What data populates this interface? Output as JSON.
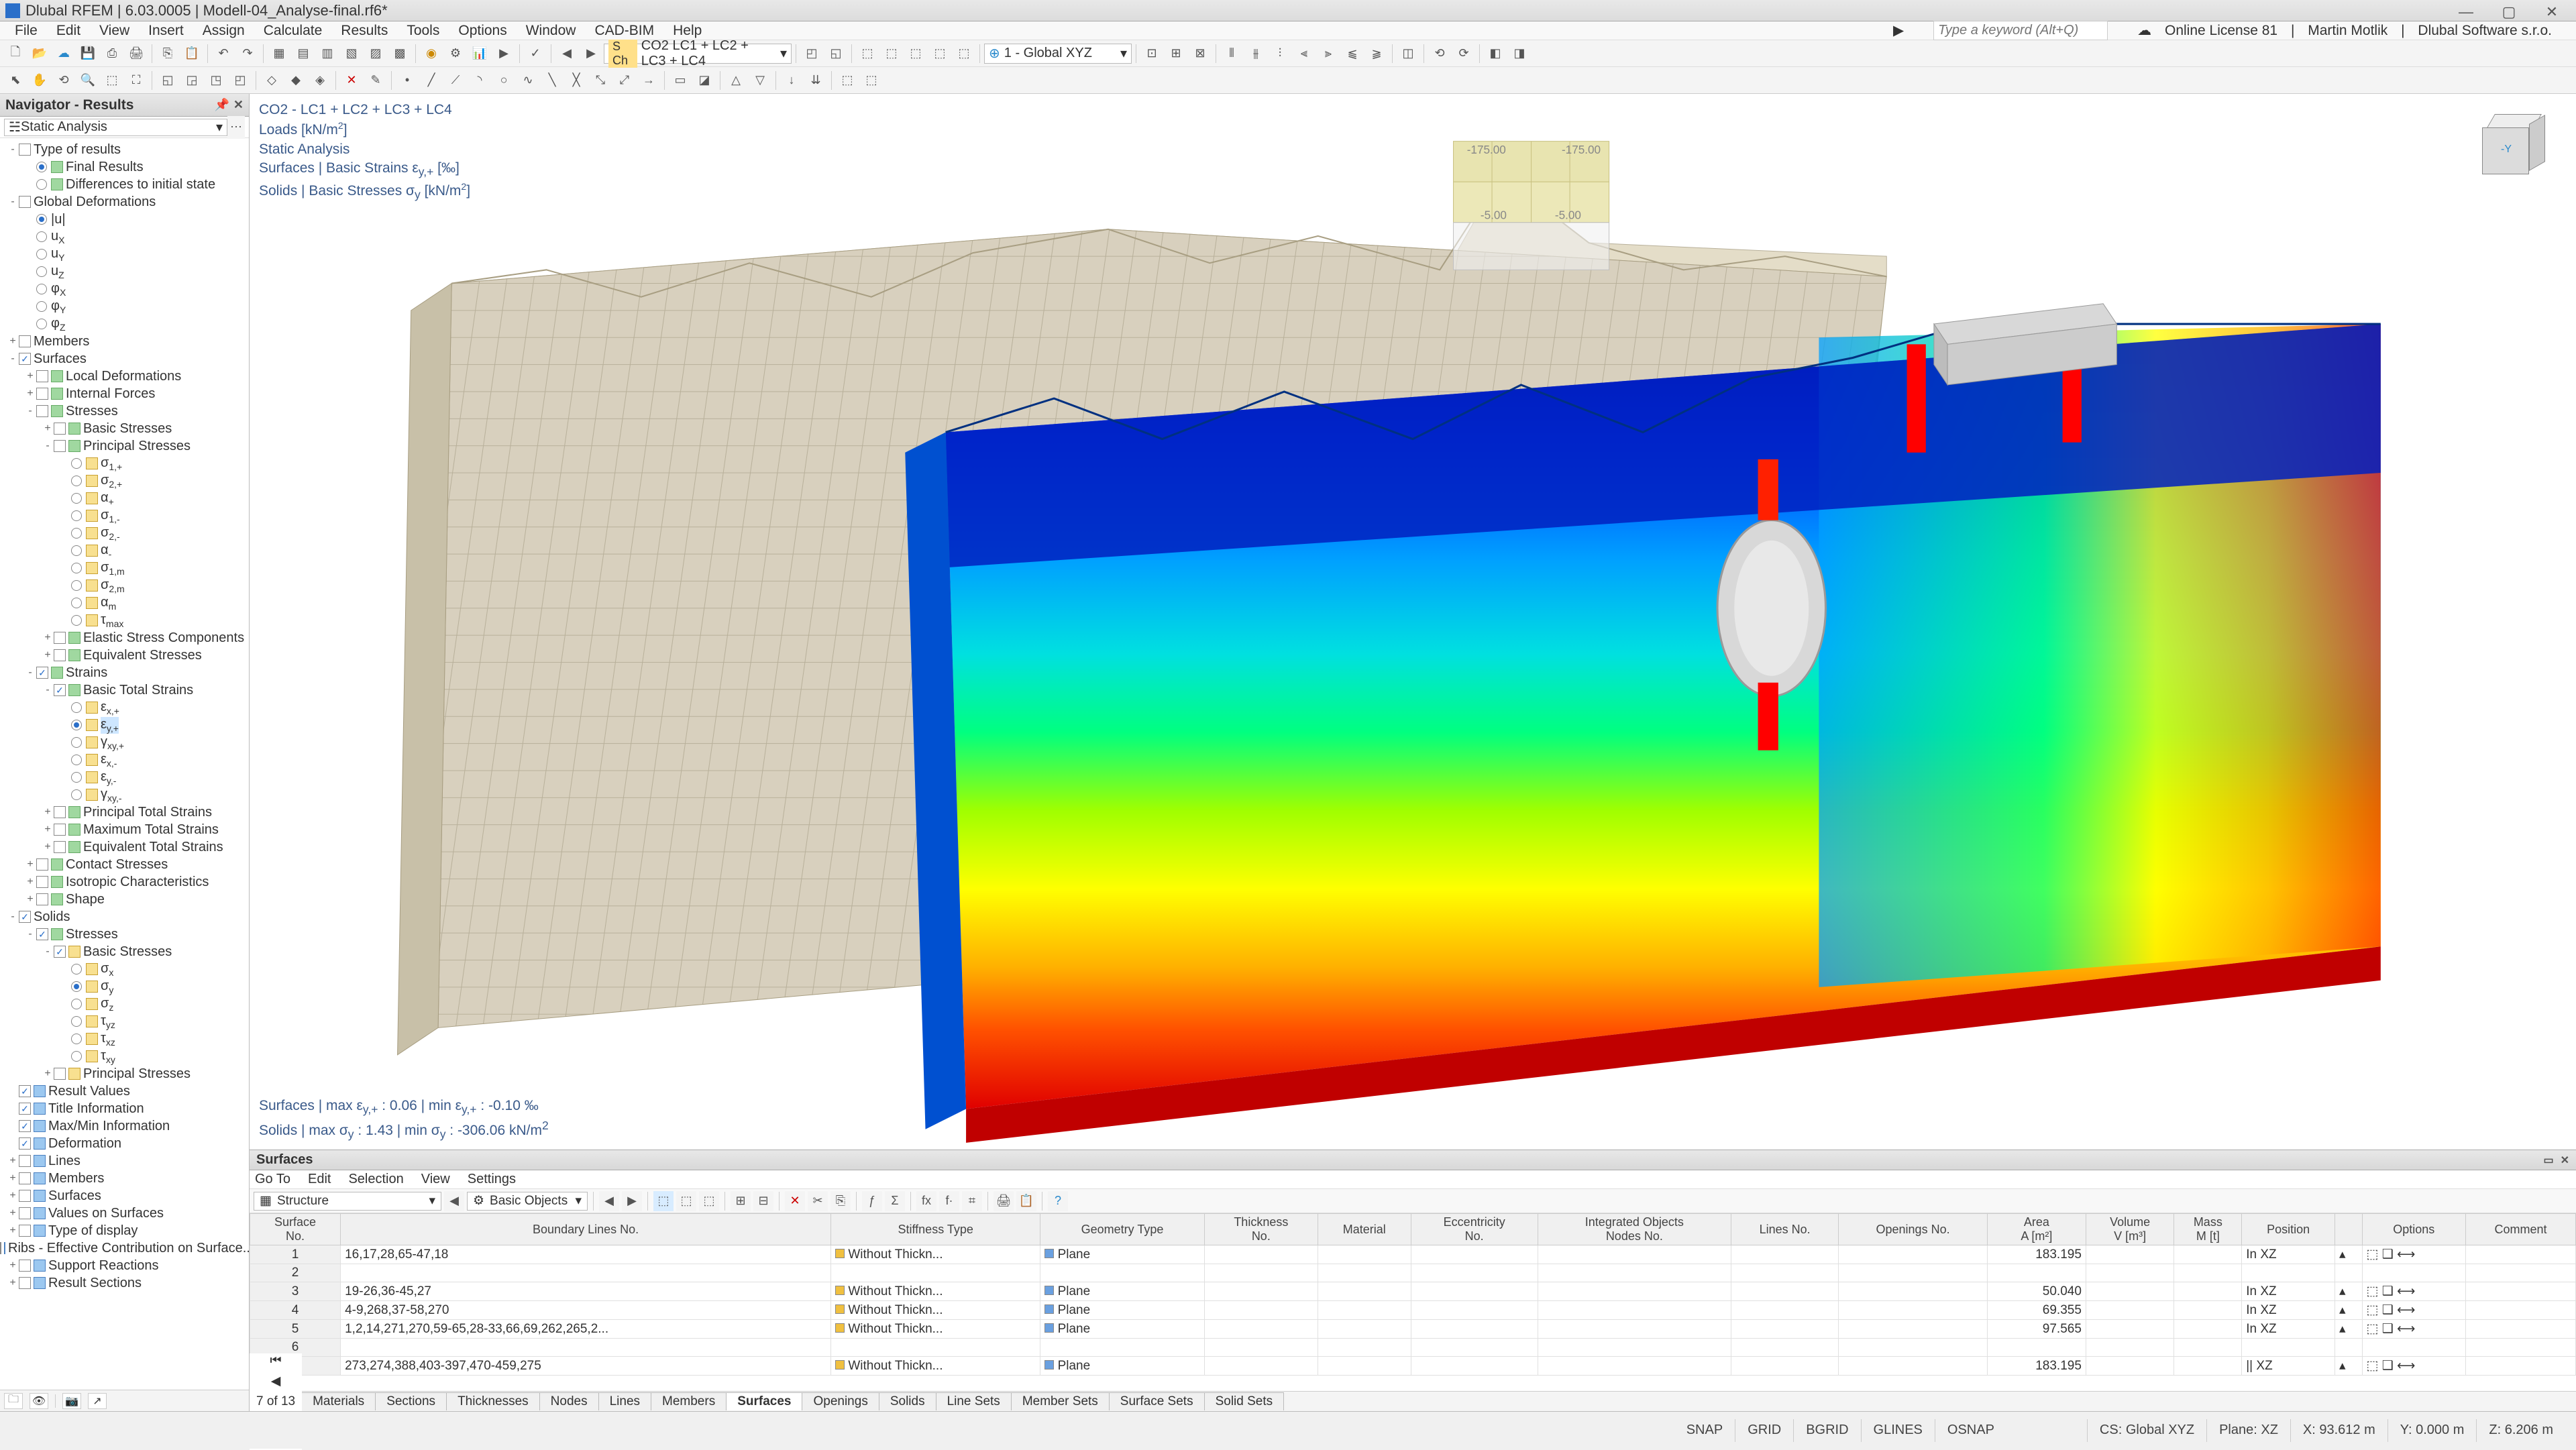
{
  "titlebar": {
    "app": "Dlubal RFEM",
    "version": "6.03.0005",
    "file": "Modell-04_Analyse-final.rf6*"
  },
  "menubar": {
    "items": [
      "File",
      "Edit",
      "View",
      "Insert",
      "Assign",
      "Calculate",
      "Results",
      "Tools",
      "Options",
      "Window",
      "CAD-BIM",
      "Help"
    ],
    "search_placeholder": "Type a keyword (Alt+Q)",
    "license": "Online License 81",
    "user": "Martin Motlik",
    "company": "Dlubal Software s.r.o."
  },
  "toolbar1": {
    "loadcase_tag": "S Ch",
    "loadcase": "CO2   LC1 + LC2 + LC3 + LC4",
    "coordsys": "1 - Global XYZ"
  },
  "navigator": {
    "title": "Navigator - Results",
    "combo": "Static Analysis"
  },
  "tree": [
    {
      "d": 0,
      "exp": "-",
      "cb": 0,
      "ic": "",
      "lbl": "Type of results"
    },
    {
      "d": 1,
      "exp": "",
      "rb": 1,
      "ic": "green",
      "lbl": "Final Results"
    },
    {
      "d": 1,
      "exp": "",
      "rb": 0,
      "ic": "green",
      "lbl": "Differences to initial state"
    },
    {
      "d": 0,
      "exp": "-",
      "cb": 0,
      "ic": "",
      "lbl": "Global Deformations"
    },
    {
      "d": 1,
      "exp": "",
      "rb": 1,
      "ic": "",
      "lbl": "|u|"
    },
    {
      "d": 1,
      "exp": "",
      "rb": 0,
      "ic": "",
      "lbl": "u<sub>X</sub>"
    },
    {
      "d": 1,
      "exp": "",
      "rb": 0,
      "ic": "",
      "lbl": "u<sub>Y</sub>"
    },
    {
      "d": 1,
      "exp": "",
      "rb": 0,
      "ic": "",
      "lbl": "u<sub>Z</sub>"
    },
    {
      "d": 1,
      "exp": "",
      "rb": 0,
      "ic": "",
      "lbl": "φ<sub>X</sub>"
    },
    {
      "d": 1,
      "exp": "",
      "rb": 0,
      "ic": "",
      "lbl": "φ<sub>Y</sub>"
    },
    {
      "d": 1,
      "exp": "",
      "rb": 0,
      "ic": "",
      "lbl": "φ<sub>Z</sub>"
    },
    {
      "d": 0,
      "exp": "+",
      "cb": 0,
      "ic": "",
      "lbl": "Members"
    },
    {
      "d": 0,
      "exp": "-",
      "cb": 1,
      "ic": "",
      "lbl": "Surfaces"
    },
    {
      "d": 1,
      "exp": "+",
      "cb": 0,
      "ic": "green",
      "lbl": "Local Deformations"
    },
    {
      "d": 1,
      "exp": "+",
      "cb": 0,
      "ic": "green",
      "lbl": "Internal Forces"
    },
    {
      "d": 1,
      "exp": "-",
      "cb": 0,
      "ic": "green",
      "lbl": "Stresses"
    },
    {
      "d": 2,
      "exp": "+",
      "cb": 0,
      "ic": "green",
      "lbl": "Basic Stresses"
    },
    {
      "d": 2,
      "exp": "-",
      "cb": 0,
      "ic": "green",
      "lbl": "Principal Stresses"
    },
    {
      "d": 3,
      "exp": "",
      "rb": 0,
      "ic": "yellow",
      "lbl": "σ<sub>1,+</sub>"
    },
    {
      "d": 3,
      "exp": "",
      "rb": 0,
      "ic": "yellow",
      "lbl": "σ<sub>2,+</sub>"
    },
    {
      "d": 3,
      "exp": "",
      "rb": 0,
      "ic": "yellow",
      "lbl": "α<sub>+</sub>"
    },
    {
      "d": 3,
      "exp": "",
      "rb": 0,
      "ic": "yellow",
      "lbl": "σ<sub>1,-</sub>"
    },
    {
      "d": 3,
      "exp": "",
      "rb": 0,
      "ic": "yellow",
      "lbl": "σ<sub>2,-</sub>"
    },
    {
      "d": 3,
      "exp": "",
      "rb": 0,
      "ic": "yellow",
      "lbl": "α<sub>-</sub>"
    },
    {
      "d": 3,
      "exp": "",
      "rb": 0,
      "ic": "yellow",
      "lbl": "σ<sub>1,m</sub>"
    },
    {
      "d": 3,
      "exp": "",
      "rb": 0,
      "ic": "yellow",
      "lbl": "σ<sub>2,m</sub>"
    },
    {
      "d": 3,
      "exp": "",
      "rb": 0,
      "ic": "yellow",
      "lbl": "α<sub>m</sub>"
    },
    {
      "d": 3,
      "exp": "",
      "rb": 0,
      "ic": "yellow",
      "lbl": "τ<sub>max</sub>"
    },
    {
      "d": 2,
      "exp": "+",
      "cb": 0,
      "ic": "green",
      "lbl": "Elastic Stress Components"
    },
    {
      "d": 2,
      "exp": "+",
      "cb": 0,
      "ic": "green",
      "lbl": "Equivalent Stresses"
    },
    {
      "d": 1,
      "exp": "-",
      "cb": 1,
      "ic": "green",
      "lbl": "Strains"
    },
    {
      "d": 2,
      "exp": "-",
      "cb": 1,
      "ic": "green",
      "lbl": "Basic Total Strains"
    },
    {
      "d": 3,
      "exp": "",
      "rb": 0,
      "ic": "yellow",
      "lbl": "ε<sub>x,+</sub>"
    },
    {
      "d": 3,
      "exp": "",
      "rb": 1,
      "ic": "yellow",
      "lbl": "ε<sub>y,+</sub>",
      "sel": 1
    },
    {
      "d": 3,
      "exp": "",
      "rb": 0,
      "ic": "yellow",
      "lbl": "γ<sub>xy,+</sub>"
    },
    {
      "d": 3,
      "exp": "",
      "rb": 0,
      "ic": "yellow",
      "lbl": "ε<sub>x,-</sub>"
    },
    {
      "d": 3,
      "exp": "",
      "rb": 0,
      "ic": "yellow",
      "lbl": "ε<sub>y,-</sub>"
    },
    {
      "d": 3,
      "exp": "",
      "rb": 0,
      "ic": "yellow",
      "lbl": "γ<sub>xy,-</sub>"
    },
    {
      "d": 2,
      "exp": "+",
      "cb": 0,
      "ic": "green",
      "lbl": "Principal Total Strains"
    },
    {
      "d": 2,
      "exp": "+",
      "cb": 0,
      "ic": "green",
      "lbl": "Maximum Total Strains"
    },
    {
      "d": 2,
      "exp": "+",
      "cb": 0,
      "ic": "green",
      "lbl": "Equivalent Total Strains"
    },
    {
      "d": 1,
      "exp": "+",
      "cb": 0,
      "ic": "green",
      "lbl": "Contact Stresses"
    },
    {
      "d": 1,
      "exp": "+",
      "cb": 0,
      "ic": "green",
      "lbl": "Isotropic Characteristics"
    },
    {
      "d": 1,
      "exp": "+",
      "cb": 0,
      "ic": "green",
      "lbl": "Shape"
    },
    {
      "d": 0,
      "exp": "-",
      "cb": 1,
      "ic": "",
      "lbl": "Solids"
    },
    {
      "d": 1,
      "exp": "-",
      "cb": 1,
      "ic": "green",
      "lbl": "Stresses"
    },
    {
      "d": 2,
      "exp": "-",
      "cb": 1,
      "ic": "yellow",
      "lbl": "Basic Stresses"
    },
    {
      "d": 3,
      "exp": "",
      "rb": 0,
      "ic": "yellow",
      "lbl": "σ<sub>x</sub>"
    },
    {
      "d": 3,
      "exp": "",
      "rb": 1,
      "ic": "yellow",
      "lbl": "σ<sub>y</sub>"
    },
    {
      "d": 3,
      "exp": "",
      "rb": 0,
      "ic": "yellow",
      "lbl": "σ<sub>z</sub>"
    },
    {
      "d": 3,
      "exp": "",
      "rb": 0,
      "ic": "yellow",
      "lbl": "τ<sub>yz</sub>"
    },
    {
      "d": 3,
      "exp": "",
      "rb": 0,
      "ic": "yellow",
      "lbl": "τ<sub>xz</sub>"
    },
    {
      "d": 3,
      "exp": "",
      "rb": 0,
      "ic": "yellow",
      "lbl": "τ<sub>xy</sub>"
    },
    {
      "d": 2,
      "exp": "+",
      "cb": 0,
      "ic": "yellow",
      "lbl": "Principal Stresses"
    },
    {
      "d": 0,
      "exp": "",
      "cb": 1,
      "ic": "blue",
      "lbl": "Result Values"
    },
    {
      "d": 0,
      "exp": "",
      "cb": 1,
      "ic": "blue",
      "lbl": "Title Information"
    },
    {
      "d": 0,
      "exp": "",
      "cb": 1,
      "ic": "blue",
      "lbl": "Max/Min Information"
    },
    {
      "d": 0,
      "exp": "",
      "cb": 1,
      "ic": "blue",
      "lbl": "Deformation"
    },
    {
      "d": 0,
      "exp": "+",
      "cb": 0,
      "ic": "blue",
      "lbl": "Lines"
    },
    {
      "d": 0,
      "exp": "+",
      "cb": 0,
      "ic": "blue",
      "lbl": "Members"
    },
    {
      "d": 0,
      "exp": "+",
      "cb": 0,
      "ic": "blue",
      "lbl": "Surfaces"
    },
    {
      "d": 0,
      "exp": "+",
      "cb": 0,
      "ic": "blue",
      "lbl": "Values on Surfaces"
    },
    {
      "d": 0,
      "exp": "+",
      "cb": 0,
      "ic": "blue",
      "lbl": "Type of display"
    },
    {
      "d": 0,
      "exp": "",
      "cb": 0,
      "ic": "blue",
      "lbl": "Ribs - Effective Contribution on Surface..."
    },
    {
      "d": 0,
      "exp": "+",
      "cb": 0,
      "ic": "blue",
      "lbl": "Support Reactions"
    },
    {
      "d": 0,
      "exp": "+",
      "cb": 0,
      "ic": "blue",
      "lbl": "Result Sections"
    }
  ],
  "viewport": {
    "header_lines": [
      "CO2 - LC1 + LC2 + LC3 + LC4",
      "Loads [kN/m²]",
      "Static Analysis",
      "Surfaces | Basic Strains ε y,+ [‰]",
      "Solids | Basic Stresses σ y [kN/m²]"
    ],
    "footer_lines": [
      "Surfaces | max ε y,+ : 0.06 | min ε y,+ : -0.10 ‰",
      "Solids | max σ y : 1.43 | min σ y : -306.06 kN/m²"
    ],
    "load_labels": [
      "-175.00",
      "-175.00",
      "-5.00",
      "-5.00"
    ],
    "mesh_color": "#d8d0be",
    "mesh_line": "#b8b09a",
    "colormap": [
      "#0000a0",
      "#0040ff",
      "#00a0ff",
      "#00e0e0",
      "#00ff80",
      "#a0ff00",
      "#ffff00",
      "#ffb000",
      "#ff5000",
      "#e00000"
    ]
  },
  "tables": {
    "title": "Surfaces",
    "submenu": [
      "Go To",
      "Edit",
      "Selection",
      "View",
      "Settings"
    ],
    "combo1": "Structure",
    "combo2": "Basic Objects",
    "columns": [
      "Surface\nNo.",
      "Boundary Lines No.",
      "Stiffness Type",
      "Geometry Type",
      "Thickness\nNo.",
      "Material",
      "Eccentricity\nNo.",
      "Integrated Objects\nNodes No.",
      "Lines No.",
      "Openings No.",
      "Area\nA [m²]",
      "Volume\nV [m³]",
      "Mass\nM [t]",
      "Position",
      "",
      "Options",
      "Comment"
    ],
    "rows": [
      {
        "no": "1",
        "bl": "16,17,28,65-47,18",
        "st": "Without Thickn...",
        "stc": "#f0c040",
        "gt": "Plane",
        "gtc": "#6aa0e0",
        "area": "183.195",
        "pos": "In XZ"
      },
      {
        "no": "2",
        "bl": "",
        "st": "",
        "gt": "",
        "area": "",
        "pos": ""
      },
      {
        "no": "3",
        "bl": "19-26,36-45,27",
        "st": "Without Thickn...",
        "stc": "#f0c040",
        "gt": "Plane",
        "gtc": "#6aa0e0",
        "area": "50.040",
        "pos": "In XZ"
      },
      {
        "no": "4",
        "bl": "4-9,268,37-58,270",
        "st": "Without Thickn...",
        "stc": "#f0c040",
        "gt": "Plane",
        "gtc": "#6aa0e0",
        "area": "69.355",
        "pos": "In XZ"
      },
      {
        "no": "5",
        "bl": "1,2,14,271,270,59-65,28-33,66,69,262,265,2...",
        "st": "Without Thickn...",
        "stc": "#f0c040",
        "gt": "Plane",
        "gtc": "#6aa0e0",
        "area": "97.565",
        "pos": "In XZ"
      },
      {
        "no": "6",
        "bl": "",
        "st": "",
        "gt": "",
        "area": "",
        "pos": ""
      },
      {
        "no": "7",
        "bl": "273,274,388,403-397,470-459,275",
        "st": "Without Thickn...",
        "stc": "#f0c040",
        "gt": "Plane",
        "gtc": "#6aa0e0",
        "area": "183.195",
        "pos": "|| XZ"
      }
    ],
    "pager": "7 of 13",
    "tabs": [
      "Materials",
      "Sections",
      "Thicknesses",
      "Nodes",
      "Lines",
      "Members",
      "Surfaces",
      "Openings",
      "Solids",
      "Line Sets",
      "Member Sets",
      "Surface Sets",
      "Solid Sets"
    ],
    "active_tab": 6
  },
  "status": {
    "left": [
      "SNAP",
      "GRID",
      "BGRID",
      "GLINES",
      "OSNAP"
    ],
    "right": [
      "CS: Global XYZ",
      "Plane: XZ",
      "X: 93.612 m",
      "Y: 0.000 m",
      "Z: 6.206 m"
    ]
  }
}
